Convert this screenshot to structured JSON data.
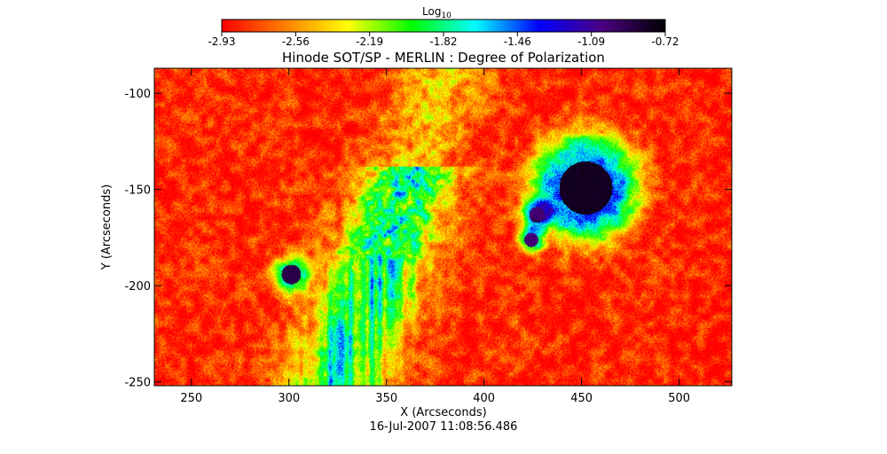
{
  "colorbar": {
    "label_base": "Log",
    "label_sub": "10",
    "ticks": [
      "-2.93",
      "-2.56",
      "-2.19",
      "-1.82",
      "-1.46",
      "-1.09",
      "-0.72"
    ],
    "range": [
      -2.93,
      -0.72
    ],
    "colormap": [
      "#ff0000",
      "#ff7f00",
      "#ffff00",
      "#00ff00",
      "#00ffff",
      "#0000ff",
      "#4b0082",
      "#000000"
    ]
  },
  "chart_data": {
    "type": "heatmap",
    "title": "Hinode SOT/SP - MERLIN : Degree of Polarization",
    "xlabel": "X (Arcseconds)",
    "ylabel": "Y (Arcseconds)",
    "xlim": [
      231,
      527
    ],
    "ylim": [
      -252,
      -87
    ],
    "x_ticks": [
      250,
      300,
      350,
      400,
      450,
      500
    ],
    "y_ticks": [
      -100,
      -150,
      -200,
      -250
    ],
    "x_tick_labels": [
      "250",
      "300",
      "350",
      "400",
      "450",
      "500"
    ],
    "y_tick_labels": [
      "-100",
      "-150",
      "-200",
      "-250"
    ],
    "value_label": "Log10 Degree of Polarization",
    "value_range": [
      -2.93,
      -0.72
    ],
    "features": [
      {
        "name": "large sunspot",
        "x": 452,
        "y": -149,
        "value": -0.8
      },
      {
        "name": "small spot",
        "x": 301,
        "y": -194,
        "value": -0.9
      },
      {
        "name": "pore",
        "x": 427,
        "y": -163,
        "value": -1.0
      },
      {
        "name": "pore",
        "x": 424,
        "y": -176,
        "value": -1.0
      }
    ],
    "timestamp": "16-Jul-2007 11:08:56.486"
  }
}
